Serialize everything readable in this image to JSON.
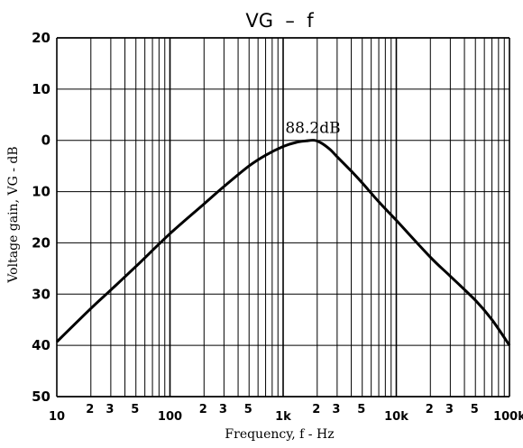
{
  "chart_data": {
    "type": "line",
    "title": "VG  –  f",
    "xlabel": "Frequency, f - Hz",
    "ylabel": "Voltage gain, VG - dB",
    "x_scale": "log",
    "xlim": [
      10,
      100000
    ],
    "ylim_top_to_bottom": [
      20,
      50
    ],
    "y_ticks": [
      {
        "value": 20,
        "label": "20"
      },
      {
        "value": 10,
        "label": "10"
      },
      {
        "value": 0,
        "label": "0"
      },
      {
        "value": -10,
        "label": "10"
      },
      {
        "value": -20,
        "label": "20"
      },
      {
        "value": -30,
        "label": "30"
      },
      {
        "value": -40,
        "label": "40"
      },
      {
        "value": -50,
        "label": "50"
      }
    ],
    "x_tick_labels": [
      {
        "value": 10,
        "label": "10"
      },
      {
        "value": 20,
        "label": "2"
      },
      {
        "value": 30,
        "label": "3"
      },
      {
        "value": 50,
        "label": "5"
      },
      {
        "value": 100,
        "label": "100"
      },
      {
        "value": 200,
        "label": "2"
      },
      {
        "value": 300,
        "label": "3"
      },
      {
        "value": 500,
        "label": "5"
      },
      {
        "value": 1000,
        "label": "1k"
      },
      {
        "value": 2000,
        "label": "2"
      },
      {
        "value": 3000,
        "label": "3"
      },
      {
        "value": 5000,
        "label": "5"
      },
      {
        "value": 10000,
        "label": "10k"
      },
      {
        "value": 20000,
        "label": "2"
      },
      {
        "value": 30000,
        "label": "3"
      },
      {
        "value": 50000,
        "label": "5"
      },
      {
        "value": 100000,
        "label": "100k"
      }
    ],
    "grid": true,
    "annotation": {
      "text": "88.2dB",
      "x": 1900,
      "y": 0
    },
    "series": [
      {
        "x": [
          10,
          20,
          30,
          50,
          100,
          200,
          300,
          500,
          700,
          1000,
          1300,
          1600,
          1900,
          2200,
          2600,
          3000,
          4000,
          5000,
          7000,
          10000,
          20000,
          30000,
          50000,
          70000,
          100000
        ],
        "y": [
          -39.3,
          -32.8,
          -29.2,
          -24.6,
          -18.2,
          -12.4,
          -9.0,
          -5.0,
          -2.9,
          -1.2,
          -0.4,
          -0.1,
          0,
          -0.6,
          -1.8,
          -3.2,
          -6.0,
          -8.3,
          -12.0,
          -15.6,
          -22.8,
          -26.5,
          -31.2,
          -35.0,
          -40.0
        ]
      }
    ]
  }
}
